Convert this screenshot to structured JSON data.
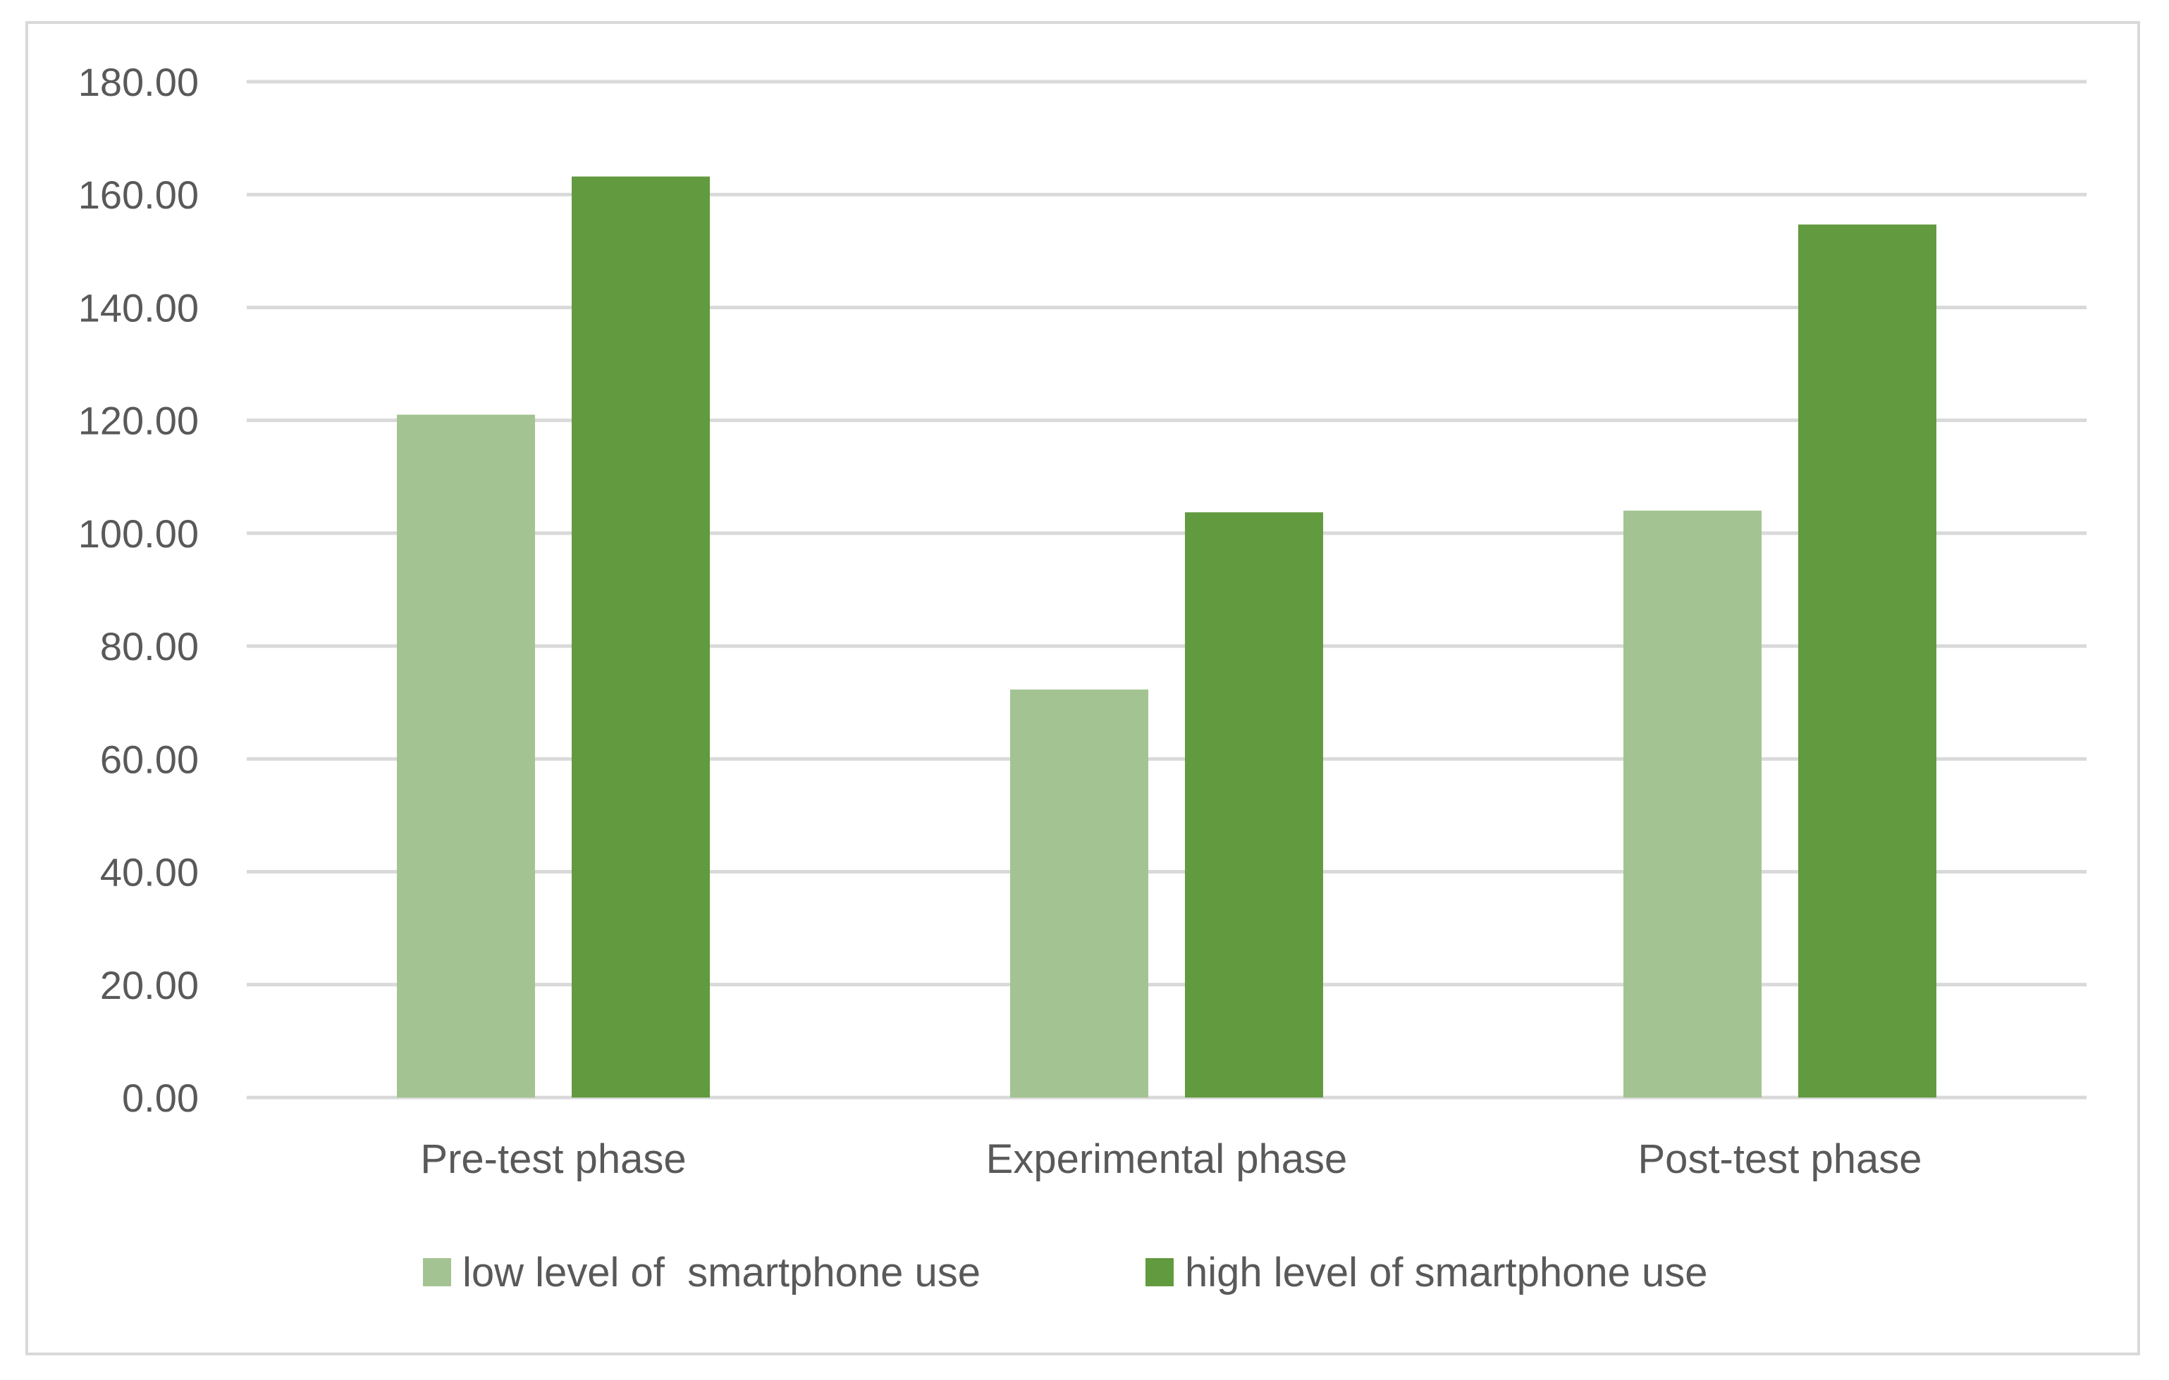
{
  "chart_data": {
    "type": "bar",
    "categories": [
      "Pre-test phase",
      "Experimental phase",
      "Post-test phase"
    ],
    "series": [
      {
        "name": "low level of  smartphone use",
        "values": [
          121.0,
          72.3,
          104.0
        ],
        "color": "#a3c492"
      },
      {
        "name": "high level of smartphone use",
        "values": [
          163.2,
          103.7,
          154.7
        ],
        "color": "#629a3f"
      }
    ],
    "y_ticks": [
      "0.00",
      "20.00",
      "40.00",
      "60.00",
      "80.00",
      "100.00",
      "120.00",
      "140.00",
      "160.00",
      "180.00"
    ],
    "ylim": [
      0,
      180
    ],
    "grid": true,
    "gridline_color": "#d9d9d9",
    "legend_position": "bottom",
    "title": "",
    "xlabel": "",
    "ylabel": ""
  }
}
